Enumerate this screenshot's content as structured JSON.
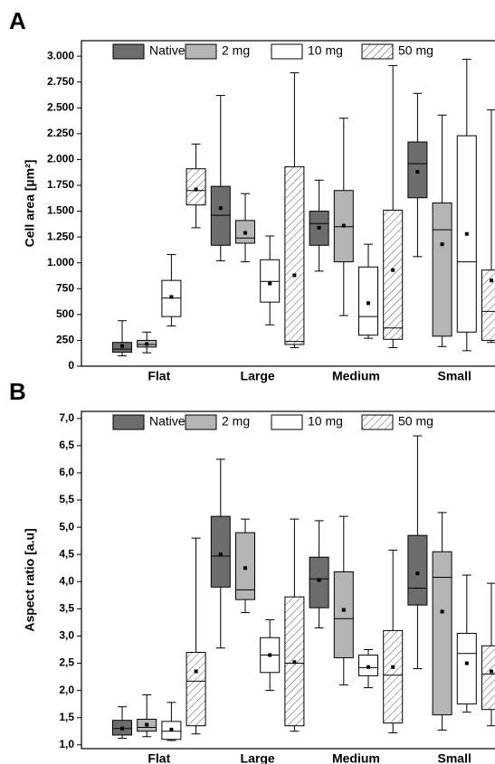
{
  "chart_data": [
    {
      "type": "box",
      "panel": "A",
      "y_label": "Cell area [µm²]",
      "categories": [
        "Flat",
        "Large",
        "Medium",
        "Small"
      ],
      "ylim": [
        0,
        3150
      ],
      "yticks": [
        0,
        250,
        500,
        750,
        {
          "value": 1000,
          "label": "1.000"
        },
        {
          "value": 1250,
          "label": "1.250"
        },
        {
          "value": 1500,
          "label": "1.500"
        },
        {
          "value": 1750,
          "label": "1.750"
        },
        {
          "value": 2000,
          "label": "2.000"
        },
        {
          "value": 2250,
          "label": "2.250"
        },
        {
          "value": 2500,
          "label": "2.500"
        },
        {
          "value": 2750,
          "label": "2.750"
        },
        {
          "value": 3000,
          "label": "3.000"
        }
      ],
      "series": [
        {
          "name": "Native",
          "color": "#6d6d6d",
          "hatch": false,
          "whisker_low": [
            100,
            1020,
            920,
            1060
          ],
          "q1": [
            135,
            1170,
            1170,
            1630
          ],
          "median": [
            165,
            1460,
            1380,
            1960
          ],
          "q3": [
            230,
            1740,
            1500,
            2170
          ],
          "whisker_high": [
            440,
            2620,
            1800,
            2640
          ],
          "mean": [
            195,
            1530,
            1340,
            1880
          ]
        },
        {
          "name": "2 mg",
          "color": "#b4b4b4",
          "hatch": false,
          "whisker_low": [
            130,
            1010,
            490,
            190
          ],
          "q1": [
            185,
            1190,
            1010,
            290
          ],
          "median": [
            210,
            1240,
            1350,
            1320
          ],
          "q3": [
            250,
            1410,
            1700,
            1580
          ],
          "whisker_high": [
            330,
            1670,
            2400,
            2430
          ],
          "mean": [
            215,
            1290,
            1360,
            1180
          ]
        },
        {
          "name": "10 mg",
          "color": "#ffffff",
          "hatch": false,
          "whisker_low": [
            390,
            400,
            270,
            150
          ],
          "q1": [
            480,
            620,
            300,
            330
          ],
          "median": [
            660,
            820,
            480,
            1010
          ],
          "q3": [
            830,
            1030,
            960,
            2230
          ],
          "whisker_high": [
            1080,
            1260,
            1180,
            2970
          ],
          "mean": [
            670,
            800,
            610,
            1280
          ]
        },
        {
          "name": "50 mg",
          "color": "#ffffff",
          "hatch": true,
          "whisker_low": [
            1340,
            180,
            180,
            230
          ],
          "q1": [
            1560,
            210,
            260,
            250
          ],
          "median": [
            1700,
            240,
            370,
            530
          ],
          "q3": [
            1910,
            1930,
            1510,
            930
          ],
          "whisker_high": [
            2150,
            2840,
            2910,
            2480
          ],
          "mean": [
            1710,
            880,
            930,
            830
          ]
        }
      ]
    },
    {
      "type": "box",
      "panel": "B",
      "y_label": "Aspect ratio [a.u]",
      "categories": [
        "Flat",
        "Large",
        "Medium",
        "Small"
      ],
      "ylim": [
        0.93,
        7.13
      ],
      "yticks": [
        {
          "value": 1,
          "label": "1,0"
        },
        {
          "value": 1.5,
          "label": "1,5"
        },
        {
          "value": 2,
          "label": "2,0"
        },
        {
          "value": 2.5,
          "label": "2,5"
        },
        {
          "value": 3,
          "label": "3,0"
        },
        {
          "value": 3.5,
          "label": "3,5"
        },
        {
          "value": 4,
          "label": "4,0"
        },
        {
          "value": 4.5,
          "label": "4,5"
        },
        {
          "value": 5,
          "label": "5,0"
        },
        {
          "value": 5.5,
          "label": "5,5"
        },
        {
          "value": 6,
          "label": "6,0"
        },
        {
          "value": 6.5,
          "label": "6,5"
        },
        {
          "value": 7,
          "label": "7,0"
        }
      ],
      "series": [
        {
          "name": "Native",
          "color": "#6d6d6d",
          "hatch": false,
          "whisker_low": [
            1.12,
            2.78,
            3.15,
            2.4
          ],
          "q1": [
            1.18,
            3.9,
            3.52,
            3.57
          ],
          "median": [
            1.3,
            4.47,
            4.05,
            3.88
          ],
          "q3": [
            1.45,
            5.2,
            4.45,
            4.85
          ],
          "whisker_high": [
            1.7,
            6.25,
            5.12,
            6.68
          ],
          "mean": [
            1.3,
            4.5,
            4.03,
            4.15
          ]
        },
        {
          "name": "2 mg",
          "color": "#b4b4b4",
          "hatch": false,
          "whisker_low": [
            1.15,
            3.43,
            2.1,
            1.27
          ],
          "q1": [
            1.25,
            3.67,
            2.6,
            1.55
          ],
          "median": [
            1.32,
            3.85,
            3.32,
            4.08
          ],
          "q3": [
            1.47,
            4.9,
            4.18,
            4.55
          ],
          "whisker_high": [
            1.92,
            5.15,
            5.2,
            5.27
          ],
          "mean": [
            1.37,
            4.25,
            3.48,
            3.45
          ]
        },
        {
          "name": "10 mg",
          "color": "#ffffff",
          "hatch": false,
          "whisker_low": [
            1.08,
            2.0,
            2.05,
            1.6
          ],
          "q1": [
            1.1,
            2.33,
            2.27,
            1.75
          ],
          "median": [
            1.25,
            2.65,
            2.42,
            2.68
          ],
          "q3": [
            1.43,
            2.97,
            2.65,
            3.05
          ],
          "whisker_high": [
            1.78,
            3.3,
            2.75,
            4.12
          ],
          "mean": [
            1.28,
            2.65,
            2.43,
            2.5
          ]
        },
        {
          "name": "50 mg",
          "color": "#ffffff",
          "hatch": true,
          "whisker_low": [
            1.2,
            1.25,
            1.22,
            1.35
          ],
          "q1": [
            1.35,
            1.35,
            1.4,
            1.65
          ],
          "median": [
            2.17,
            2.5,
            2.28,
            2.3
          ],
          "q3": [
            2.7,
            3.72,
            3.1,
            2.82
          ],
          "whisker_high": [
            4.8,
            5.15,
            4.58,
            3.97
          ],
          "mean": [
            2.35,
            2.52,
            2.43,
            2.35
          ]
        }
      ]
    }
  ]
}
